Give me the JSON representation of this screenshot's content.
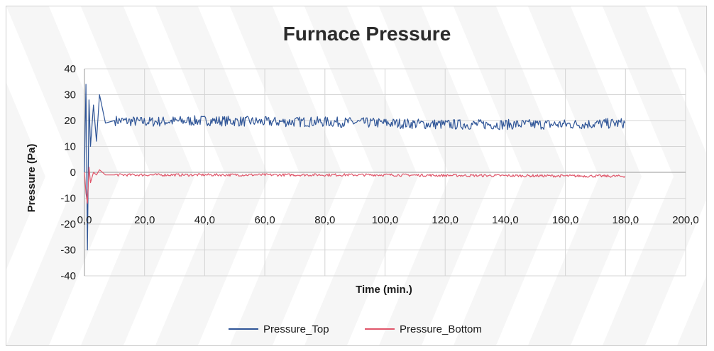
{
  "chart_data": {
    "type": "line",
    "title": "Furnace Pressure",
    "xlabel": "Time (min.)",
    "ylabel": "Pressure (Pa)",
    "xlim": [
      0,
      200
    ],
    "ylim": [
      -40,
      40
    ],
    "x_ticks": [
      "0,0",
      "20,0",
      "40,0",
      "60,0",
      "80,0",
      "100,0",
      "120,0",
      "140,0",
      "160,0",
      "180,0",
      "200,0"
    ],
    "y_ticks": [
      "40",
      "30",
      "20",
      "10",
      "0",
      "-10",
      "-20",
      "-30",
      "-40"
    ],
    "grid": true,
    "legend_position": "bottom",
    "series": [
      {
        "name": "Pressure_Top",
        "color": "#2f5597",
        "x": [
          0,
          0.5,
          1,
          1.5,
          2,
          3,
          4,
          5,
          7,
          10,
          20,
          40,
          60,
          80,
          100,
          120,
          140,
          160,
          180
        ],
        "values": [
          0,
          34,
          -30,
          28,
          10,
          26,
          12,
          30,
          19,
          20,
          19.5,
          20,
          19.5,
          19.5,
          19,
          18.5,
          18.5,
          18.5,
          19
        ],
        "fluctuation": "±2"
      },
      {
        "name": "Pressure_Bottom",
        "color": "#e0566a",
        "x": [
          0,
          0.5,
          1,
          1.5,
          2,
          3,
          4,
          5,
          7,
          10,
          20,
          40,
          60,
          80,
          100,
          120,
          140,
          160,
          180
        ],
        "values": [
          0,
          -8,
          -12,
          2,
          -4,
          0,
          -1,
          1,
          -1,
          -1,
          -1,
          -1,
          -1,
          -1,
          -1,
          -1.2,
          -1.3,
          -1.4,
          -1.5
        ],
        "fluctuation": "±0.5"
      }
    ]
  }
}
